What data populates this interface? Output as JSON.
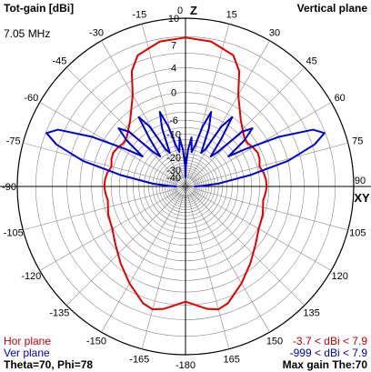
{
  "header": {
    "title": "Tot-gain [dBi]",
    "plane": "Vertical plane",
    "frequency": "7.05 MHz"
  },
  "axis": {
    "top_label": "Z",
    "right_label": "XY"
  },
  "legend": {
    "hor_plane": "Hor plane",
    "ver_plane": "Ver plane",
    "hor_range": "-3.7 < dBi < 7.9",
    "ver_range": "-999 < dBi < 7.9"
  },
  "footer": {
    "theta_phi": "Theta=70, Phi=78",
    "max_gain": "Max gain The:70"
  },
  "colors": {
    "hor": "#e00000",
    "ver": "#0000d0",
    "hor_text": "#c00000",
    "ver_text": "#0000c0",
    "grid": "#888888",
    "axes": "#000000"
  },
  "chart_data": {
    "type": "polar",
    "radial_unit": "dBi",
    "radial_range": [
      -40,
      10
    ],
    "radial_ticks": [
      10,
      7,
      4,
      0,
      -6,
      -10,
      -20,
      -30,
      -40
    ],
    "angle_ticks": [
      0,
      15,
      30,
      45,
      60,
      75,
      90,
      105,
      120,
      135,
      150,
      165,
      -180,
      -165,
      -150,
      -135,
      -120,
      -105,
      -90,
      -75,
      -60,
      -45,
      -30,
      -15
    ],
    "series": [
      {
        "name": "Hor plane",
        "angle_deg": [
          0,
          10,
          20,
          25,
          30,
          40,
          50,
          55,
          60,
          65,
          70,
          75,
          80,
          85,
          90,
          95,
          100,
          105,
          110,
          115,
          120,
          130,
          140,
          150,
          160,
          165,
          170,
          180,
          -170,
          -165,
          -160,
          -150,
          -140,
          -130,
          -120,
          -115,
          -110,
          -105,
          -100,
          -95,
          -90,
          -85,
          -80,
          -75,
          -70,
          -65,
          -60,
          -55,
          -50,
          -40,
          -30,
          -25,
          -20,
          -10
        ],
        "gain_dbi": [
          7.9,
          7.7,
          6.8,
          5.2,
          2.0,
          -1.5,
          -3.5,
          -3.7,
          -3.2,
          -2.8,
          -3.0,
          -3.5,
          -2.9,
          -2.6,
          -2.5,
          -2.7,
          -3.0,
          -2.7,
          -2.3,
          -2.1,
          -1.8,
          -0.5,
          1.2,
          3.0,
          4.8,
          5.2,
          4.8,
          3.5,
          4.8,
          5.2,
          4.8,
          3.0,
          1.2,
          -0.5,
          -1.8,
          -2.1,
          -2.3,
          -2.7,
          -3.0,
          -2.7,
          -2.5,
          -2.6,
          -2.9,
          -3.5,
          -3.0,
          -2.8,
          -3.2,
          -3.7,
          -3.5,
          -1.5,
          2.0,
          5.2,
          6.8,
          7.7
        ]
      },
      {
        "name": "Ver plane",
        "angle_deg": [
          -90,
          -88,
          -85,
          -80,
          -76,
          -72,
          -69,
          -66,
          -62,
          -58,
          -55,
          -52,
          -49,
          -46,
          -43,
          -40,
          -37,
          -34,
          -31,
          -28,
          -25,
          -22,
          -19,
          -16,
          -13,
          -10,
          -7,
          -4,
          -1,
          0,
          1,
          4,
          7,
          10,
          13,
          16,
          19,
          22,
          25,
          28,
          31,
          34,
          37,
          40,
          43,
          46,
          49,
          52,
          55,
          58,
          62,
          66,
          69,
          72,
          76,
          80,
          85,
          88,
          90
        ],
        "gain_dbi": [
          -999,
          -30,
          -18,
          -6,
          2,
          6.3,
          7.9,
          6.8,
          2,
          -5,
          -10,
          -4,
          -1,
          -3,
          -12,
          -15,
          -8,
          -2,
          -5,
          -14,
          -16,
          -7,
          -3,
          -7,
          -14,
          -17,
          -11,
          -16,
          -26,
          -999,
          -26,
          -16,
          -11,
          -17,
          -14,
          -7,
          -3,
          -7,
          -16,
          -14,
          -5,
          -2,
          -8,
          -15,
          -12,
          -3,
          -1,
          -4,
          -10,
          -5,
          2,
          6.8,
          7.9,
          6.3,
          2,
          -6,
          -18,
          -30,
          -999
        ]
      }
    ]
  }
}
